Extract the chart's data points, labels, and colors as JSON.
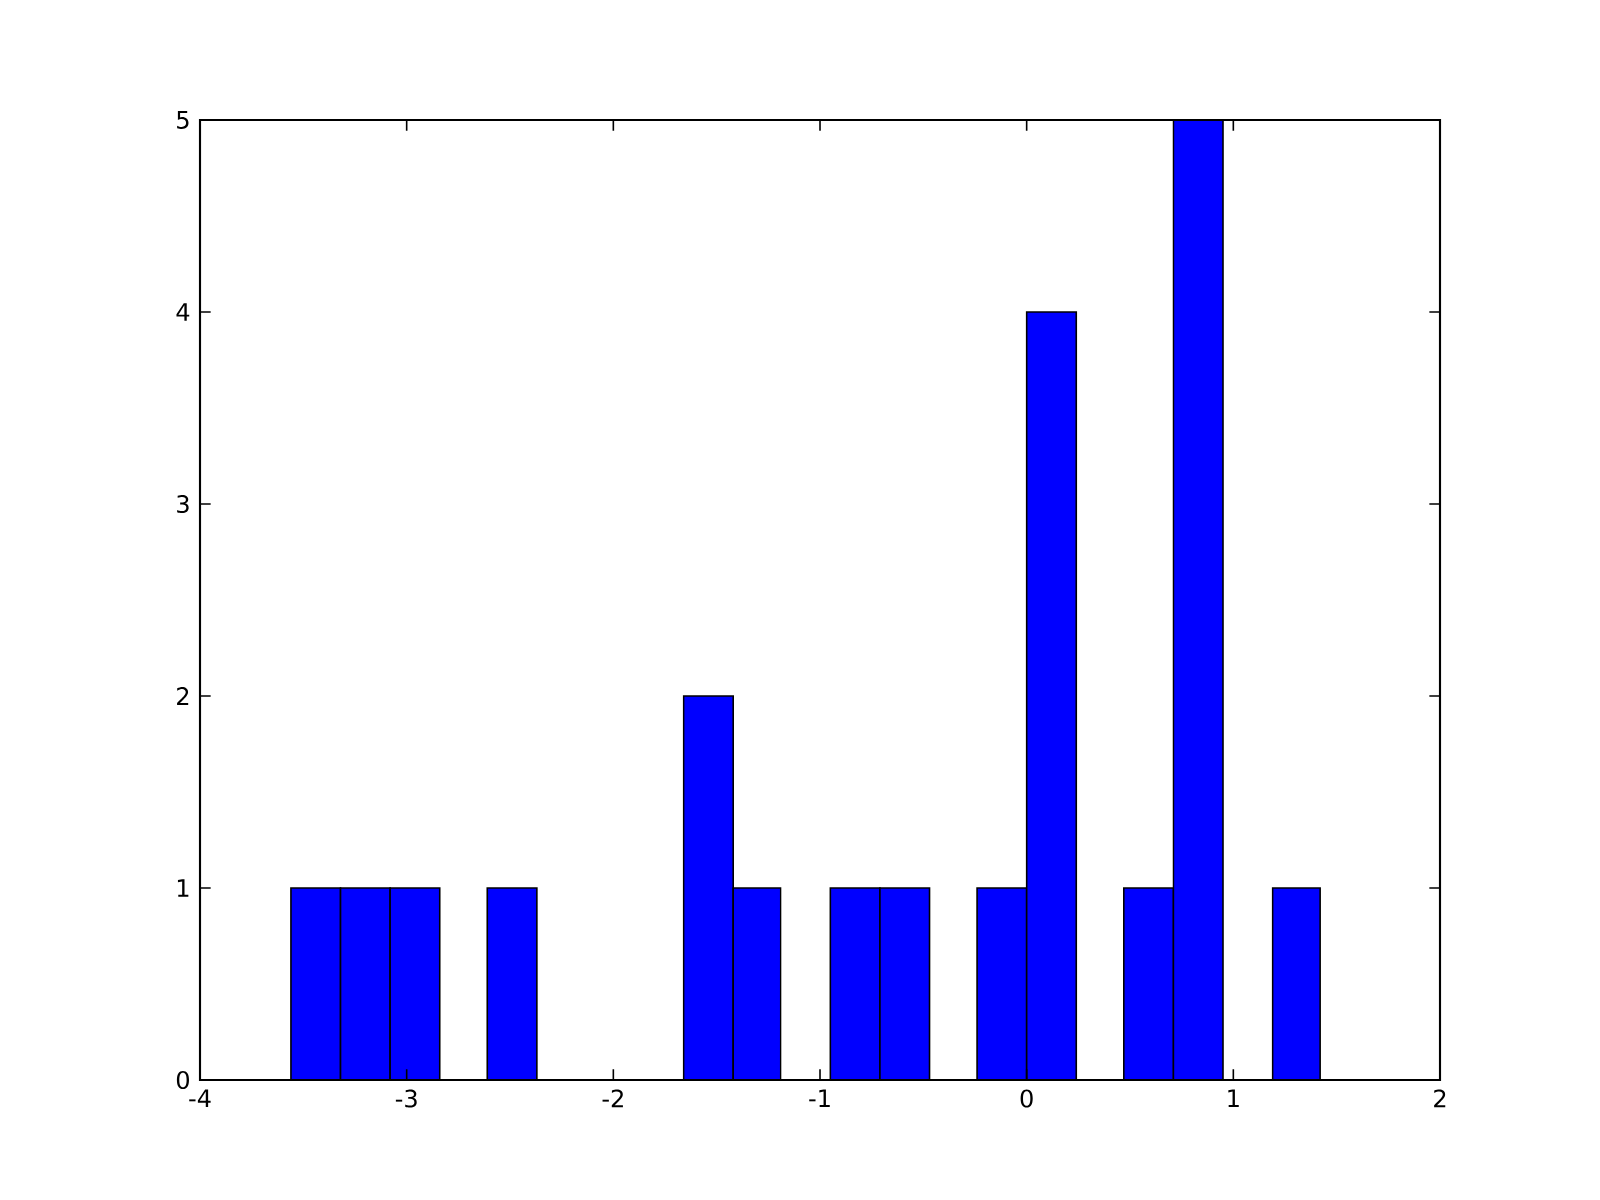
{
  "chart_data": {
    "type": "histogram",
    "bins": [
      -3.56,
      -3.32,
      -3.08,
      -2.84,
      -2.61,
      -2.37,
      -1.66,
      -1.42,
      -1.19,
      -0.95,
      -0.71,
      -0.47,
      -0.24,
      0.0,
      0.24,
      0.47,
      0.71,
      0.95,
      1.19,
      1.42
    ],
    "values": [
      1,
      1,
      1,
      0,
      1,
      0,
      2,
      1,
      0,
      1,
      1,
      0,
      1,
      4,
      0,
      1,
      5,
      0,
      1
    ],
    "color": "#0000ff",
    "xlim": [
      -4,
      2
    ],
    "ylim": [
      0,
      5
    ],
    "xticks": [
      -4,
      -3,
      -2,
      -1,
      0,
      1,
      2
    ],
    "yticks": [
      0,
      1,
      2,
      3,
      4,
      5
    ]
  }
}
